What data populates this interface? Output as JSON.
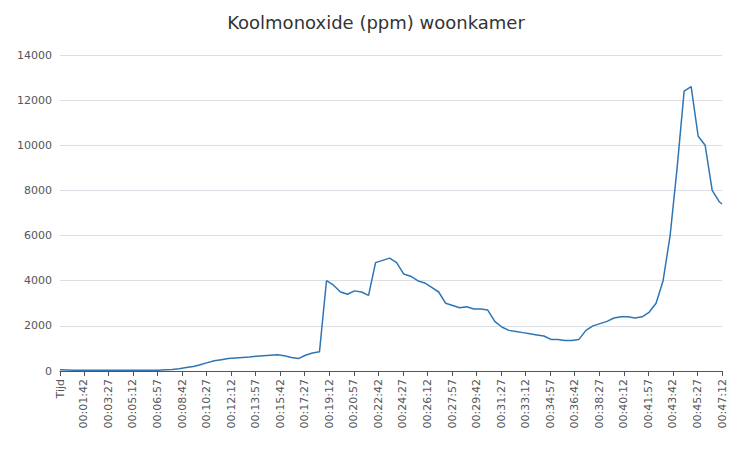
{
  "chart_data": {
    "type": "line",
    "title": "Koolmonoxide (ppm) woonkamer",
    "x": [
      0,
      30,
      60,
      90,
      120,
      150,
      180,
      210,
      240,
      270,
      300,
      330,
      360,
      390,
      420,
      450,
      480,
      510,
      540,
      570,
      600,
      630,
      660,
      690,
      720,
      750,
      780,
      810,
      840,
      870,
      900,
      930,
      960,
      990,
      1020,
      1050,
      1080,
      1110,
      1140,
      1170,
      1200,
      1230,
      1260,
      1290,
      1320,
      1350,
      1380,
      1410,
      1440,
      1470,
      1500,
      1530,
      1560,
      1590,
      1620,
      1650,
      1680,
      1710,
      1740,
      1770,
      1800,
      1830,
      1860,
      1890,
      1920,
      1950,
      1980,
      2010,
      2040,
      2070,
      2100,
      2130,
      2160,
      2190,
      2220,
      2250,
      2280,
      2310,
      2340,
      2370,
      2400,
      2430,
      2460,
      2490,
      2520,
      2550,
      2580,
      2610,
      2640,
      2670,
      2700,
      2730,
      2760,
      2790,
      2820,
      2832
    ],
    "values": [
      50,
      40,
      30,
      30,
      30,
      30,
      30,
      30,
      30,
      30,
      30,
      30,
      30,
      30,
      30,
      50,
      70,
      100,
      150,
      200,
      280,
      370,
      450,
      500,
      550,
      580,
      600,
      620,
      650,
      680,
      700,
      720,
      680,
      600,
      550,
      700,
      800,
      850,
      4000,
      3800,
      3500,
      3400,
      3550,
      3500,
      3350,
      4800,
      4900,
      5000,
      4800,
      4300,
      4200,
      4000,
      3900,
      3700,
      3500,
      3000,
      2900,
      2800,
      2850,
      2750,
      2750,
      2700,
      2200,
      1950,
      1800,
      1750,
      1700,
      1650,
      1600,
      1550,
      1400,
      1400,
      1350,
      1350,
      1400,
      1800,
      2000,
      2100,
      2200,
      2350,
      2400,
      2400,
      2350,
      2400,
      2600,
      3000,
      4000,
      6000,
      9000,
      12400,
      12600,
      10400,
      10000,
      8000,
      7500,
      7400
    ],
    "color": "#2E75B6",
    "xlim": [
      0,
      2832
    ],
    "xticks": [
      {
        "value": 0,
        "label": "Tijd"
      },
      {
        "value": 102,
        "label": "00:01:42"
      },
      {
        "value": 207,
        "label": "00:03:27"
      },
      {
        "value": 312,
        "label": "00:05:12"
      },
      {
        "value": 417,
        "label": "00:06:57"
      },
      {
        "value": 522,
        "label": "00:08:42"
      },
      {
        "value": 627,
        "label": "00:10:27"
      },
      {
        "value": 732,
        "label": "00:12:12"
      },
      {
        "value": 837,
        "label": "00:13:57"
      },
      {
        "value": 942,
        "label": "00:15:42"
      },
      {
        "value": 1047,
        "label": "00:17:27"
      },
      {
        "value": 1152,
        "label": "00:19:12"
      },
      {
        "value": 1257,
        "label": "00:20:57"
      },
      {
        "value": 1362,
        "label": "00:22:42"
      },
      {
        "value": 1467,
        "label": "00:24:27"
      },
      {
        "value": 1572,
        "label": "00:26:12"
      },
      {
        "value": 1677,
        "label": "00:27:57"
      },
      {
        "value": 1782,
        "label": "00:29:42"
      },
      {
        "value": 1887,
        "label": "00:31:27"
      },
      {
        "value": 1992,
        "label": "00:33:12"
      },
      {
        "value": 2097,
        "label": "00:34:57"
      },
      {
        "value": 2202,
        "label": "00:36:42"
      },
      {
        "value": 2307,
        "label": "00:38:27"
      },
      {
        "value": 2412,
        "label": "00:40:12"
      },
      {
        "value": 2517,
        "label": "00:41:57"
      },
      {
        "value": 2622,
        "label": "00:43:42"
      },
      {
        "value": 2727,
        "label": "00:45:27"
      },
      {
        "value": 2832,
        "label": "00:47:12"
      }
    ],
    "ylim": [
      0,
      14000
    ],
    "yticks": [
      0,
      2000,
      4000,
      6000,
      8000,
      10000,
      12000,
      14000
    ],
    "grid": true
  }
}
